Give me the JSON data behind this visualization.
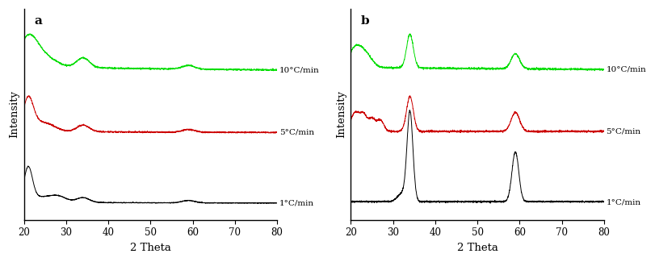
{
  "xlim": [
    20,
    80
  ],
  "xticks": [
    20,
    30,
    40,
    50,
    60,
    70,
    80
  ],
  "xlabel": "2 Theta",
  "ylabel": "Intensity",
  "panel_labels": [
    "a",
    "b"
  ],
  "labels": [
    "10°C/min",
    "5°C/min",
    "1°C/min"
  ],
  "colors": [
    "#00dd00",
    "#cc0000",
    "#000000"
  ],
  "background_color": "#ffffff",
  "figsize": [
    8.11,
    3.25
  ],
  "dpi": 100
}
